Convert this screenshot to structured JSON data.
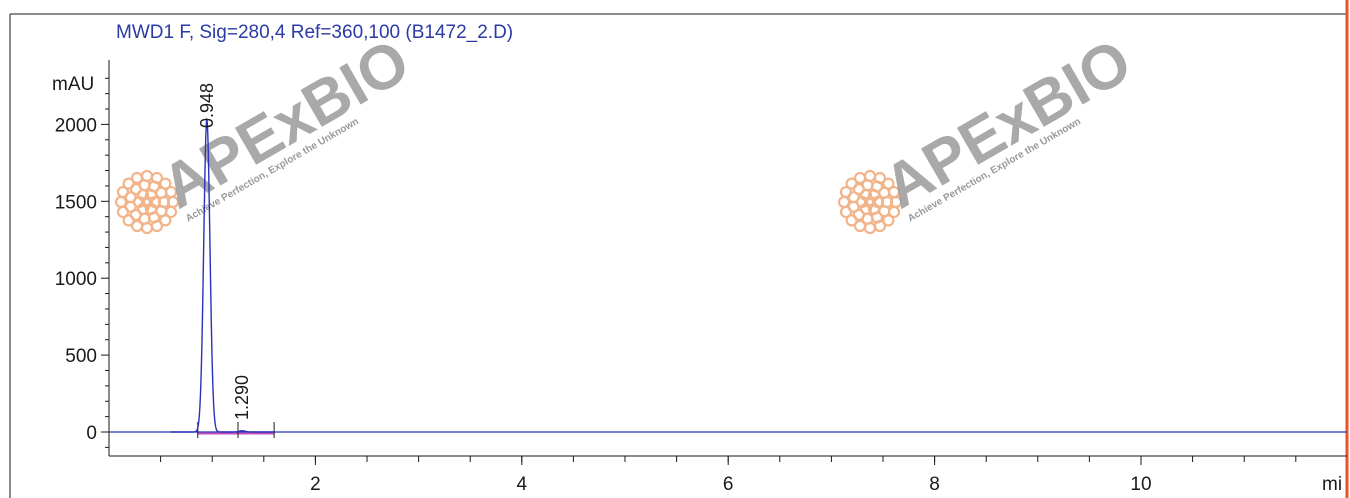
{
  "colors": {
    "trace": "#2a33b8",
    "baseline": "#c050c0",
    "right_edge": "#e8532a",
    "watermark_text": "#9a9a9a",
    "watermark_logo": "#f2b48a",
    "title": "#2b3aa6"
  },
  "watermark": {
    "brand": "APExBIO",
    "tagline": "Achieve Perfection, Explore the Unknown",
    "logo_icon": "cell-cluster-icon"
  },
  "chart_data": {
    "type": "line",
    "title": "MWD1 F, Sig=280,4 Ref=360,100 (B1472_2.D)",
    "ylabel": "mAU",
    "xlabel": "mi",
    "xlim": [
      0,
      11.9
    ],
    "ylim": [
      -110,
      2400
    ],
    "x_ticks": [
      2,
      4,
      6,
      8,
      10
    ],
    "y_ticks": [
      0,
      500,
      1000,
      1500,
      2000
    ],
    "grid": false,
    "series": [
      {
        "peaks": [
          {
            "rt": 0.948,
            "height": 2030,
            "width": 0.03,
            "label": "0.948"
          },
          {
            "rt": 1.29,
            "height": 8,
            "width": 0.03,
            "label": "1.290"
          }
        ]
      }
    ],
    "integration_segment": [
      0.86,
      1.6
    ]
  }
}
